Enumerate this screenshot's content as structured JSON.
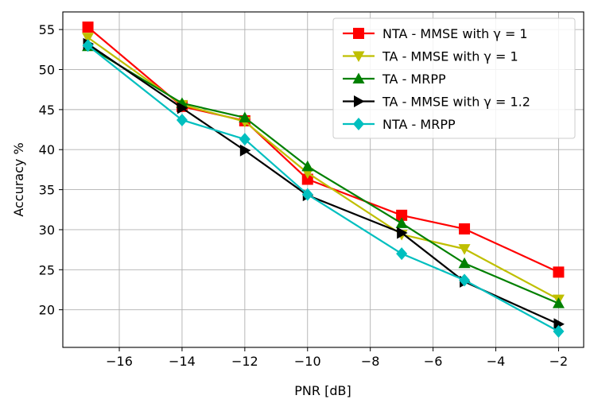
{
  "chart_data": {
    "type": "line",
    "xlabel": "PNR [dB]",
    "ylabel": "Accuracy %",
    "xlim": [
      -17.8,
      -1.2
    ],
    "ylim": [
      15.3,
      57.2
    ],
    "xticks": [
      -16,
      -14,
      -12,
      -10,
      -8,
      -6,
      -4,
      -2
    ],
    "yticks": [
      20,
      25,
      30,
      35,
      40,
      45,
      50,
      55
    ],
    "xtick_labels": [
      "−16",
      "−14",
      "−12",
      "−10",
      "−8",
      "−6",
      "−4",
      "−2"
    ],
    "ytick_labels": [
      "20",
      "25",
      "30",
      "35",
      "40",
      "45",
      "50",
      "55"
    ],
    "grid": true,
    "legend_position": "top-right",
    "series": [
      {
        "name": "NTA - MMSE with γ = 1",
        "color": "#ff0000",
        "marker": "square",
        "x": [
          -17,
          -14,
          -12,
          -10,
          -7,
          -5,
          -2
        ],
        "y": [
          55.3,
          45.4,
          43.6,
          36.3,
          31.8,
          30.1,
          24.7
        ]
      },
      {
        "name": "TA - MMSE with γ = 1",
        "color": "#bfbf00",
        "marker": "triangle-down",
        "x": [
          -17,
          -14,
          -12,
          -10,
          -7,
          -5,
          -2
        ],
        "y": [
          54.0,
          45.6,
          43.5,
          37.1,
          29.4,
          27.6,
          21.3
        ]
      },
      {
        "name": "TA - MRPP",
        "color": "#008000",
        "marker": "triangle-up",
        "x": [
          -17,
          -14,
          -12,
          -10,
          -7,
          -5,
          -2
        ],
        "y": [
          52.9,
          45.8,
          44.0,
          37.9,
          30.8,
          25.8,
          20.8
        ]
      },
      {
        "name": "TA - MMSE with γ = 1.2",
        "color": "#000000",
        "marker": "triangle-right",
        "x": [
          -17,
          -14,
          -12,
          -10,
          -7,
          -5,
          -2
        ],
        "y": [
          53.2,
          45.2,
          39.9,
          34.3,
          29.6,
          23.5,
          18.2
        ]
      },
      {
        "name": "NTA - MRPP",
        "color": "#00bfbf",
        "marker": "diamond",
        "x": [
          -17,
          -14,
          -12,
          -10,
          -7,
          -5,
          -2
        ],
        "y": [
          53.0,
          43.7,
          41.3,
          34.4,
          27.0,
          23.7,
          17.3
        ]
      }
    ]
  }
}
